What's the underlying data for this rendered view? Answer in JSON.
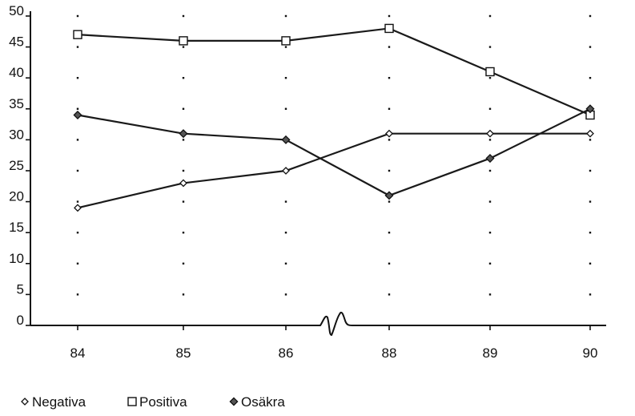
{
  "chart_data": {
    "type": "line",
    "categories": [
      "84",
      "85",
      "86",
      "88",
      "89",
      "90"
    ],
    "ylim": [
      0,
      50
    ],
    "yticks": [
      0,
      5,
      10,
      15,
      20,
      25,
      30,
      35,
      40,
      45,
      50
    ],
    "axis_break": "between 86 and 88",
    "grid": "dotted",
    "legend_position": "bottom-left",
    "series": [
      {
        "name": "Negativa",
        "marker": "diamond-open",
        "values": [
          19,
          23,
          25,
          31,
          31,
          31
        ]
      },
      {
        "name": "Positiva",
        "marker": "square-open",
        "values": [
          47,
          46,
          46,
          48,
          41,
          34
        ]
      },
      {
        "name": "Osäkra",
        "marker": "diamond-filled",
        "values": [
          34,
          31,
          30,
          21,
          27,
          35
        ]
      }
    ]
  }
}
